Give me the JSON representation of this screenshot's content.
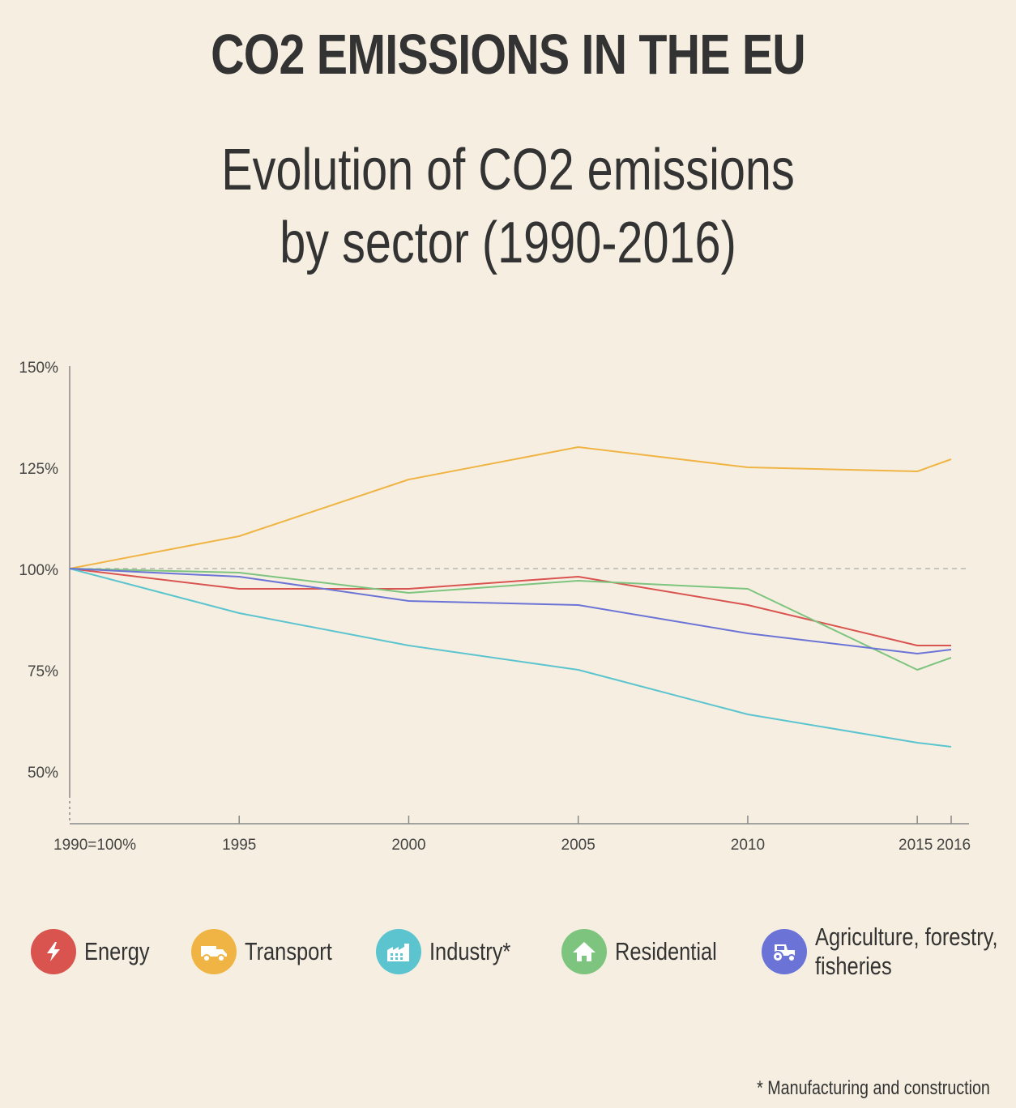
{
  "header": {
    "title": "CO2 EMISSIONS IN THE EU",
    "subtitle_line1": "Evolution of CO2 emissions",
    "subtitle_line2": "by sector (1990-2016)"
  },
  "chart_data": {
    "type": "line",
    "title": "Evolution of CO2 emissions by sector (1990-2016)",
    "xlabel": "",
    "ylabel": "",
    "x": [
      1990,
      1995,
      2000,
      2005,
      2010,
      2015,
      2016
    ],
    "x_tick_labels": [
      "1990=100%",
      "1995",
      "2000",
      "2005",
      "2010",
      "2015",
      "2016"
    ],
    "y_ticks": [
      50,
      75,
      100,
      125,
      150
    ],
    "y_tick_labels": [
      "50%",
      "75%",
      "100%",
      "125%",
      "150%"
    ],
    "ylim": [
      50,
      150
    ],
    "reference_line": 100,
    "grid": false,
    "legend_position": "bottom",
    "series": [
      {
        "name": "Energy",
        "color": "#d9534f",
        "values": [
          100,
          95,
          95,
          98,
          91,
          81,
          81
        ]
      },
      {
        "name": "Transport",
        "color": "#f0b445",
        "values": [
          100,
          108,
          122,
          130,
          125,
          124,
          127
        ]
      },
      {
        "name": "Industry*",
        "color": "#5bc4cf",
        "values": [
          100,
          89,
          81,
          75,
          64,
          57,
          56
        ]
      },
      {
        "name": "Residential",
        "color": "#7dc47f",
        "values": [
          100,
          99,
          94,
          97,
          95,
          75,
          78
        ]
      },
      {
        "name": "Agriculture, forestry, fisheries",
        "color": "#6b74d6",
        "values": [
          100,
          98,
          92,
          91,
          84,
          79,
          80
        ]
      }
    ]
  },
  "legend": {
    "items": [
      {
        "label": "Energy",
        "color": "#d9534f",
        "icon": "lightning-icon"
      },
      {
        "label": "Transport",
        "color": "#f0b445",
        "icon": "truck-icon"
      },
      {
        "label": "Industry*",
        "color": "#5bc4cf",
        "icon": "factory-icon"
      },
      {
        "label": "Residential",
        "color": "#7dc47f",
        "icon": "house-icon"
      },
      {
        "label": "Agriculture, forestry, fisheries",
        "color": "#6b74d6",
        "icon": "tractor-icon"
      }
    ]
  },
  "footnote": "* Manufacturing and construction"
}
